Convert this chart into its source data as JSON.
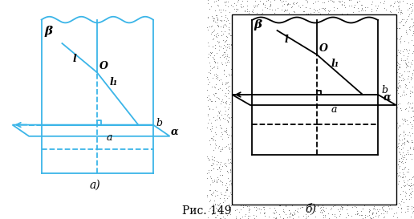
{
  "fig_width": 5.16,
  "fig_height": 2.73,
  "dpi": 100,
  "bg_color": "#ffffff",
  "blue": "#3bb5e8",
  "black": "#000000",
  "label_a": "a",
  "label_b": "b",
  "label_O": "O",
  "label_l": "l",
  "label_l1": "l₁",
  "label_beta": "β",
  "label_alpha": "α",
  "caption_a": "a)",
  "caption_b": "б)",
  "caption_fig": "Рис. 149"
}
